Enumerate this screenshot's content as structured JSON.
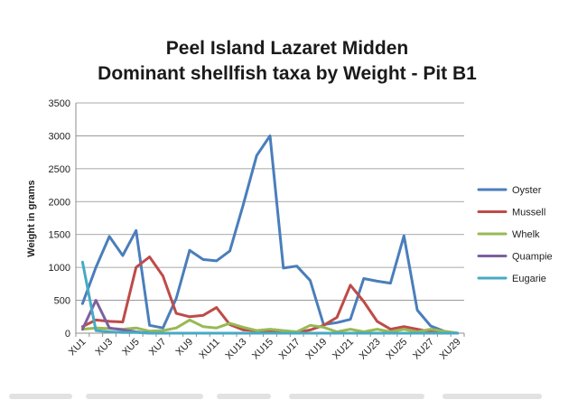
{
  "chart_data": {
    "type": "line",
    "title": [
      "Peel Island Lazaret Midden",
      "Dominant shellfish taxa by Weight - Pit B1"
    ],
    "ylabel": "Weight in grams",
    "xlabel": "",
    "ylim": [
      0,
      3500
    ],
    "yticks": [
      0,
      500,
      1000,
      1500,
      2000,
      2500,
      3000,
      3500
    ],
    "grid": "horizontal",
    "legend_position": "right",
    "x": [
      "XU1",
      "XU2",
      "XU3",
      "XU4",
      "XU5",
      "XU6",
      "XU7",
      "XU8",
      "XU9",
      "XU10",
      "XU11",
      "XU12",
      "XU13",
      "XU14",
      "XU15",
      "XU16",
      "XU17",
      "XU18",
      "XU19",
      "XU20",
      "XU21",
      "XU22",
      "XU23",
      "XU24",
      "XU25",
      "XU26",
      "XU27",
      "XU28",
      "XU29"
    ],
    "x_tick_labels": [
      "XU1",
      "XU3",
      "XU5",
      "XU7",
      "XU9",
      "XU11",
      "XU13",
      "XU15",
      "XU17",
      "XU19",
      "XU21",
      "XU23",
      "XU25",
      "XU27",
      "XU29"
    ],
    "series": [
      {
        "name": "Oyster",
        "color": "#4a7ebb",
        "values": [
          450,
          1000,
          1470,
          1180,
          1560,
          120,
          80,
          530,
          1260,
          1120,
          1100,
          1250,
          1950,
          2700,
          3000,
          990,
          1020,
          800,
          130,
          160,
          210,
          830,
          790,
          760,
          1480,
          350,
          110,
          30,
          0
        ]
      },
      {
        "name": "Mussell",
        "color": "#be4b48",
        "values": [
          100,
          200,
          180,
          170,
          1000,
          1160,
          870,
          300,
          250,
          270,
          390,
          130,
          50,
          40,
          30,
          20,
          10,
          50,
          120,
          240,
          730,
          480,
          180,
          60,
          100,
          60,
          20,
          10,
          0
        ]
      },
      {
        "name": "Whelk",
        "color": "#98b954",
        "values": [
          60,
          80,
          70,
          60,
          80,
          30,
          40,
          80,
          200,
          100,
          80,
          150,
          90,
          40,
          60,
          40,
          20,
          120,
          90,
          20,
          60,
          20,
          60,
          20,
          60,
          20,
          60,
          30,
          0
        ]
      },
      {
        "name": "Quampie",
        "color": "#7d60a0",
        "values": [
          60,
          500,
          80,
          50,
          20,
          0,
          0,
          0,
          0,
          0,
          0,
          0,
          0,
          0,
          0,
          0,
          0,
          0,
          0,
          0,
          0,
          0,
          0,
          0,
          0,
          0,
          0,
          0,
          0
        ]
      },
      {
        "name": "Eugarie",
        "color": "#46aac5",
        "values": [
          1080,
          40,
          20,
          10,
          10,
          0,
          0,
          0,
          0,
          0,
          0,
          0,
          0,
          0,
          0,
          0,
          0,
          0,
          0,
          0,
          0,
          0,
          0,
          0,
          0,
          0,
          0,
          0,
          0
        ]
      }
    ]
  }
}
